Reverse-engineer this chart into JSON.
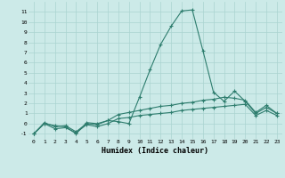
{
  "xlabel": "Humidex (Indice chaleur)",
  "x": [
    0,
    1,
    2,
    3,
    4,
    5,
    6,
    7,
    8,
    9,
    10,
    11,
    12,
    13,
    14,
    15,
    16,
    17,
    18,
    19,
    20,
    21,
    22,
    23
  ],
  "line1": [
    -1.0,
    0.0,
    -0.2,
    -0.3,
    -1.0,
    0.1,
    0.0,
    0.3,
    0.2,
    0.0,
    2.6,
    5.3,
    7.8,
    9.6,
    11.1,
    11.2,
    7.2,
    3.1,
    2.2,
    3.2,
    2.2,
    1.0,
    1.6,
    1.0
  ],
  "line2": [
    -1.0,
    0.1,
    -0.3,
    -0.2,
    -0.8,
    0.0,
    -0.1,
    0.3,
    0.9,
    1.1,
    1.3,
    1.5,
    1.7,
    1.8,
    2.0,
    2.1,
    2.3,
    2.4,
    2.6,
    2.5,
    2.3,
    1.1,
    1.8,
    1.0
  ],
  "line3": [
    -1.0,
    0.0,
    -0.5,
    -0.4,
    -0.9,
    -0.1,
    -0.3,
    0.0,
    0.5,
    0.6,
    0.8,
    0.9,
    1.0,
    1.1,
    1.3,
    1.4,
    1.5,
    1.6,
    1.7,
    1.8,
    1.9,
    0.8,
    1.3,
    0.8
  ],
  "color": "#2e7d6e",
  "bg_color": "#cceae8",
  "grid_color": "#aad4d0",
  "xlim": [
    -0.5,
    23.5
  ],
  "ylim": [
    -1.5,
    12.0
  ],
  "yticks": [
    -1,
    0,
    1,
    2,
    3,
    4,
    5,
    6,
    7,
    8,
    9,
    10,
    11
  ],
  "xticks": [
    0,
    1,
    2,
    3,
    4,
    5,
    6,
    7,
    8,
    9,
    10,
    11,
    12,
    13,
    14,
    15,
    16,
    17,
    18,
    19,
    20,
    21,
    22,
    23
  ]
}
